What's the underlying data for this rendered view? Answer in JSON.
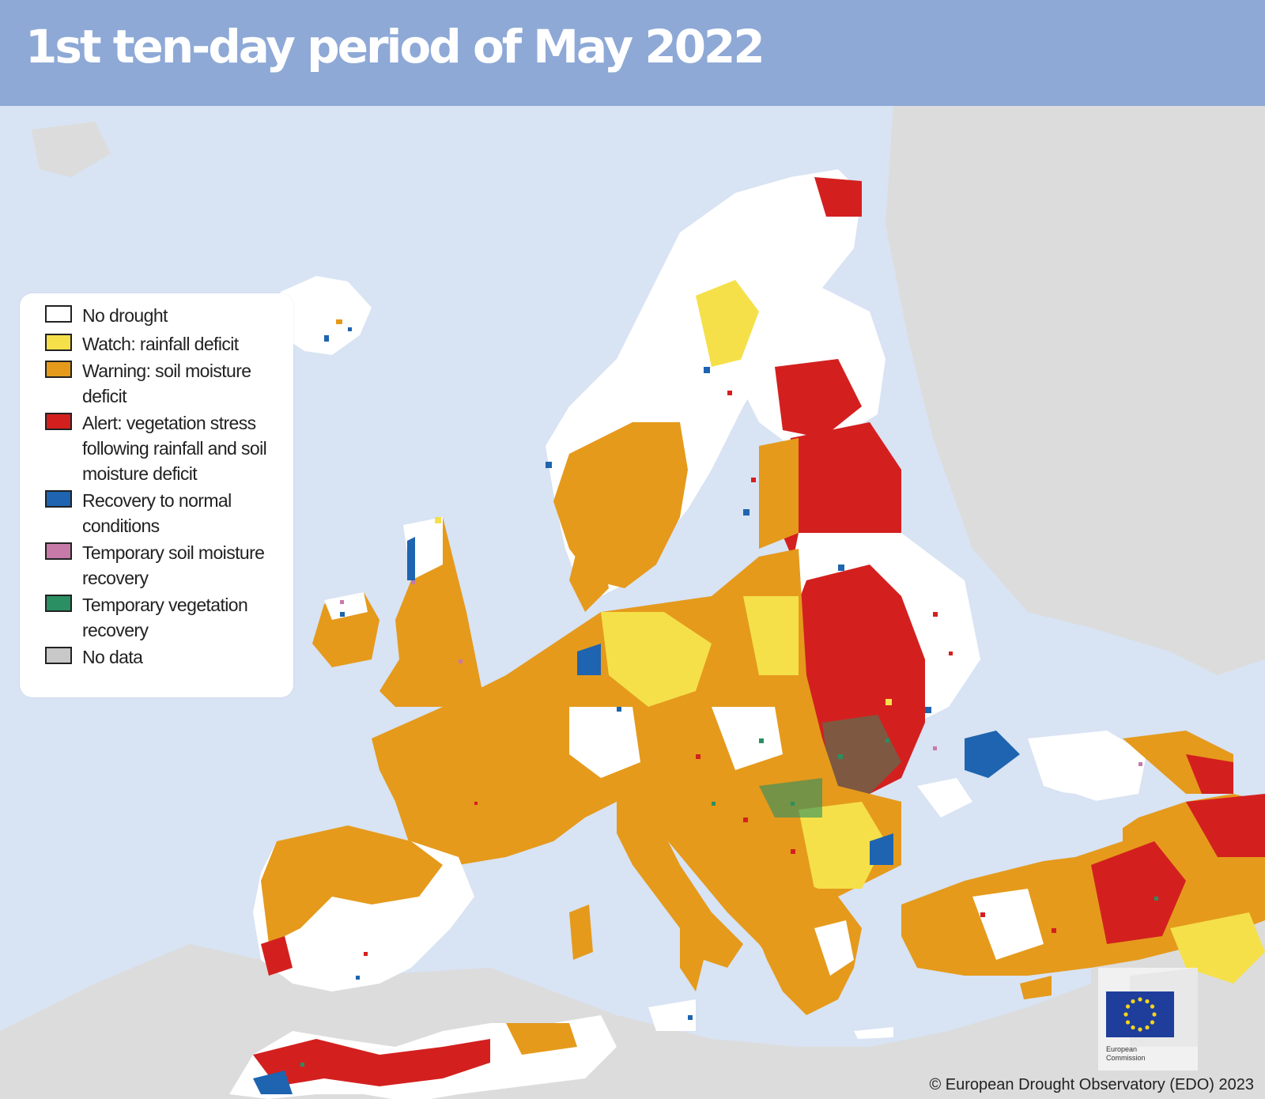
{
  "header": {
    "title": "1st ten-day period of May 2022"
  },
  "legend": {
    "items": [
      {
        "label": "No drought",
        "color": "#ffffff"
      },
      {
        "label": "Watch: rainfall deficit",
        "color": "#f5e04a"
      },
      {
        "label": "Warning: soil moisture deficit",
        "color": "#e59a1c"
      },
      {
        "label": "Alert: vegetation stress following rainfall and soil moisture deficit",
        "color": "#d3201f"
      },
      {
        "label": "Recovery to normal conditions",
        "color": "#1e64b0"
      },
      {
        "label": "Temporary soil moisture recovery",
        "color": "#c77aa8"
      },
      {
        "label": "Temporary vegetation recovery",
        "color": "#2a8f62"
      },
      {
        "label": "No data",
        "color": "#c8c8c8"
      }
    ]
  },
  "logo": {
    "text_line1": "European",
    "text_line2": "Commission",
    "emblem": "eu-flag-icon"
  },
  "credit": "© European Drought Observatory (EDO) 2023",
  "colors": {
    "sea": "#d8e3f3",
    "land_outside": "#dcdcdc",
    "header_bg": "#8ea9d6"
  }
}
